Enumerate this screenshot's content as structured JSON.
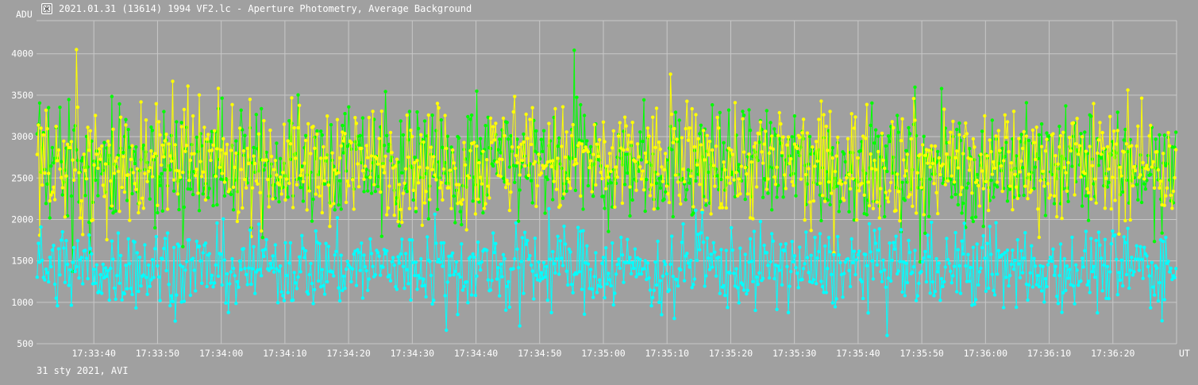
{
  "window": {
    "title": "2021.01.31 (13614) 1994 VF2.lc - Aperture Photometry, Average Background",
    "icon": "app-icon"
  },
  "footer": {
    "note": "31 sty 2021, AVI"
  },
  "colors": {
    "background": "#a0a0a0",
    "grid": "#c8c8c8",
    "axis_text": "#ffffff",
    "series_yellow": "#ffff00",
    "series_green": "#00ff00",
    "series_cyan": "#00ffff"
  },
  "chart_data": {
    "type": "scatter",
    "ylabel": "ADU",
    "xlabel": "UT",
    "grid": true,
    "legend": "none",
    "ylim": [
      500,
      4400
    ],
    "yticks": [
      500,
      1000,
      1500,
      2000,
      2500,
      3000,
      3500,
      4000
    ],
    "xlim": [
      "17:33:31",
      "17:36:30"
    ],
    "xticks": [
      "17:33:40",
      "17:33:50",
      "17:34:00",
      "17:34:10",
      "17:34:20",
      "17:34:30",
      "17:34:40",
      "17:34:50",
      "17:35:00",
      "17:35:10",
      "17:35:20",
      "17:35:30",
      "17:35:40",
      "17:35:50",
      "17:36:00",
      "17:36:10",
      "17:36:20"
    ],
    "series": [
      {
        "color": "#ffff00",
        "typical_range": [
          1800,
          3700
        ],
        "max": 4060
      },
      {
        "color": "#00ff00",
        "typical_range": [
          1900,
          3500
        ],
        "max": 3850
      },
      {
        "color": "#00ffff",
        "typical_range": [
          900,
          2000
        ],
        "min": 600
      }
    ]
  }
}
